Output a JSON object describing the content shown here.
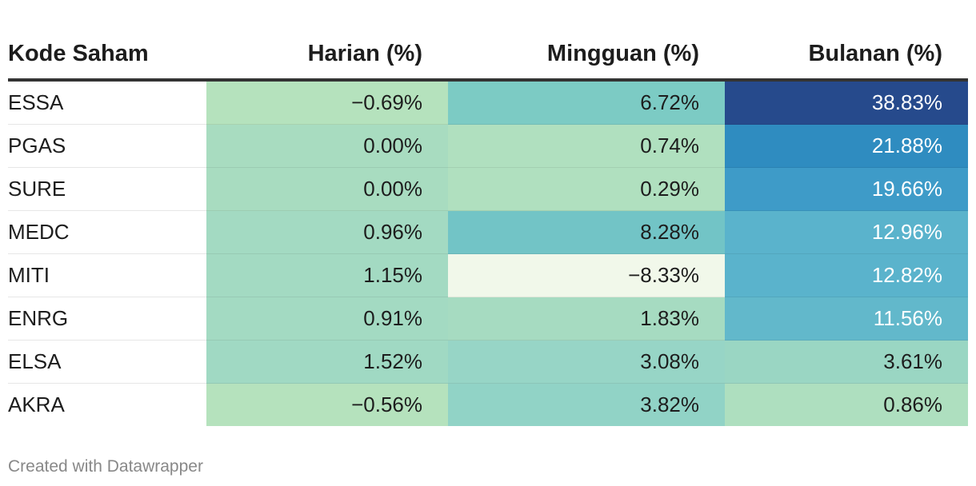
{
  "chart_data": {
    "type": "table",
    "columns": [
      "Kode Saham",
      "Harian (%)",
      "Mingguan (%)",
      "Bulanan (%)"
    ],
    "rows": [
      {
        "code": "ESSA",
        "harian": "−0.69%",
        "mingguan": "6.72%",
        "bulanan": "38.83%"
      },
      {
        "code": "PGAS",
        "harian": "0.00%",
        "mingguan": "0.74%",
        "bulanan": "21.88%"
      },
      {
        "code": "SURE",
        "harian": "0.00%",
        "mingguan": "0.29%",
        "bulanan": "19.66%"
      },
      {
        "code": "MEDC",
        "harian": "0.96%",
        "mingguan": "8.28%",
        "bulanan": "12.96%"
      },
      {
        "code": "MITI",
        "harian": "1.15%",
        "mingguan": "−8.33%",
        "bulanan": "12.82%"
      },
      {
        "code": "ENRG",
        "harian": "0.91%",
        "mingguan": "1.83%",
        "bulanan": "11.56%"
      },
      {
        "code": "ELSA",
        "harian": "1.52%",
        "mingguan": "3.08%",
        "bulanan": "3.61%"
      },
      {
        "code": "AKRA",
        "harian": "−0.56%",
        "mingguan": "3.82%",
        "bulanan": "0.86%"
      }
    ],
    "cell_colors": [
      [
        "#b5e2bd",
        "#7ccbc4",
        "#264a8c"
      ],
      [
        "#a8dcc0",
        "#b0e0bf",
        "#2f8cc0"
      ],
      [
        "#a8dcc0",
        "#b0e0bf",
        "#3e9bc8"
      ],
      [
        "#a3dac2",
        "#72c4c6",
        "#5ab3cc"
      ],
      [
        "#a3dac2",
        "#f1f8ea",
        "#5ab3cc"
      ],
      [
        "#a3dac2",
        "#a6dbc1",
        "#62b8cb"
      ],
      [
        "#a0d9c3",
        "#97d5c6",
        "#9ad6c3"
      ],
      [
        "#b5e2bd",
        "#91d3c6",
        "#aedfbf"
      ]
    ],
    "cell_text_colors": [
      [
        "#1d1d1d",
        "#1d1d1d",
        "#ffffff"
      ],
      [
        "#1d1d1d",
        "#1d1d1d",
        "#ffffff"
      ],
      [
        "#1d1d1d",
        "#1d1d1d",
        "#ffffff"
      ],
      [
        "#1d1d1d",
        "#1d1d1d",
        "#ffffff"
      ],
      [
        "#1d1d1d",
        "#1d1d1d",
        "#ffffff"
      ],
      [
        "#1d1d1d",
        "#1d1d1d",
        "#ffffff"
      ],
      [
        "#1d1d1d",
        "#1d1d1d",
        "#1d1d1d"
      ],
      [
        "#1d1d1d",
        "#1d1d1d",
        "#1d1d1d"
      ]
    ]
  },
  "footer": {
    "credit": "Created with Datawrapper"
  }
}
